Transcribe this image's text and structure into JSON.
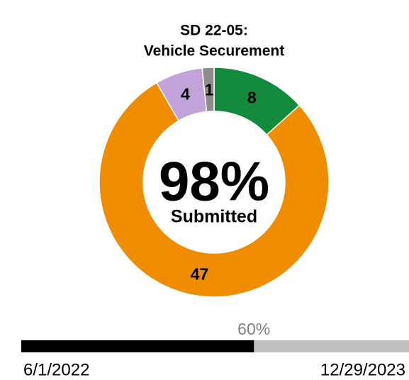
{
  "chart_data": {
    "type": "donut",
    "title": [
      "SD 22-05:",
      "Vehicle Securement"
    ],
    "categories": [
      null,
      null,
      null,
      null
    ],
    "values": [
      8,
      47,
      4,
      1
    ],
    "colors": [
      "#138a3c",
      "#ef8c00",
      "#c1a3d9",
      "#8c8c8c"
    ],
    "center_label": "98%",
    "center_sublabel": "Submitted",
    "progress": {
      "value": 60,
      "label": "60%",
      "range": [
        0,
        100
      ],
      "start": "6/1/2022",
      "end": "12/29/2023"
    }
  }
}
